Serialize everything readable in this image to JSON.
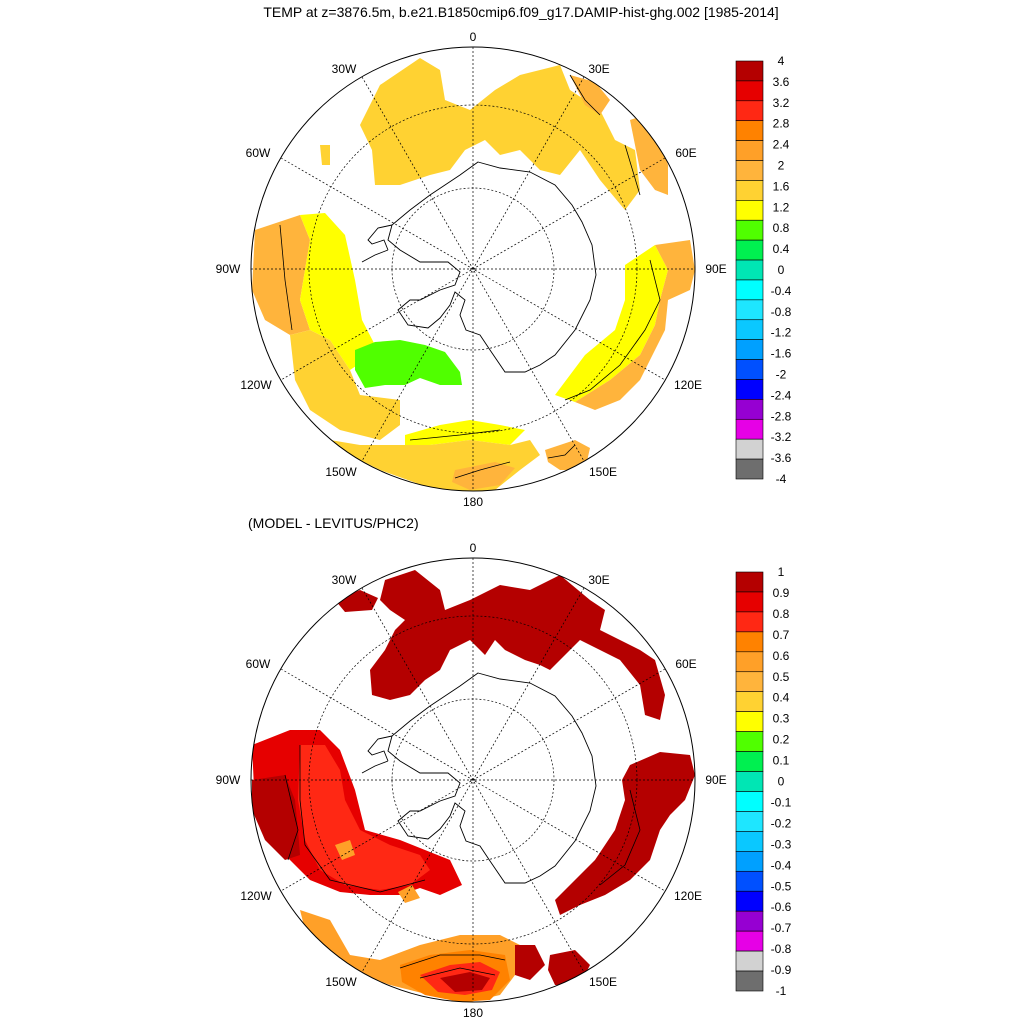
{
  "figure": {
    "title": "TEMP at z=3876.5m, b.e21.B1850cmip6.f09_g17.DAMIP-hist-ghg.002 [1985-2014]",
    "subtitle": "(MODEL - LEVITUS/PHC2)"
  },
  "maps": [
    {
      "id": "top",
      "projection": "south-polar-stereographic",
      "longitude_labels": [
        "0",
        "30E",
        "60E",
        "90E",
        "120E",
        "150E",
        "180",
        "150W",
        "120W",
        "90W",
        "60W",
        "30W"
      ],
      "colorbar": {
        "labels": [
          "4",
          "3.6",
          "3.2",
          "2.8",
          "2.4",
          "2",
          "1.6",
          "1.2",
          "0.8",
          "0.4",
          "0",
          "-0.4",
          "-0.8",
          "-1.2",
          "-1.6",
          "-2",
          "-2.4",
          "-2.8",
          "-3.2",
          "-3.6",
          "-4"
        ],
        "colors": [
          "#b40000",
          "#e60000",
          "#ff2814",
          "#ff8200",
          "#ffa028",
          "#ffb43c",
          "#ffd232",
          "#ffff00",
          "#50ff00",
          "#00f050",
          "#00e6b4",
          "#00ffff",
          "#1ee6ff",
          "#0ac8ff",
          "#00a0ff",
          "#0050ff",
          "#0000ff",
          "#9600d2",
          "#e600e6",
          "#d2d2d2",
          "#6e6e6e"
        ]
      },
      "regions": [
        {
          "name": "atlantic-sector",
          "level": "1.6",
          "color": "#ffd232"
        },
        {
          "name": "africa-30e",
          "level": "1.6",
          "color": "#ffb43c"
        },
        {
          "name": "southwest-pacific-west",
          "level": "1.6",
          "color": "#ffb43c"
        },
        {
          "name": "east-pacific-band",
          "level": "1.2",
          "color": "#ffff00"
        },
        {
          "name": "bellingshausen-patch",
          "level": "0.8",
          "color": "#50ff00"
        },
        {
          "name": "indian-ocean-east",
          "level": "1.2",
          "color": "#ffff00"
        },
        {
          "name": "tasman-south",
          "level": "1.6",
          "color": "#ffb43c"
        },
        {
          "name": "ross-sea-band",
          "level": "1.2",
          "color": "#ffff00"
        }
      ]
    },
    {
      "id": "bottom",
      "projection": "south-polar-stereographic",
      "longitude_labels": [
        "0",
        "30E",
        "60E",
        "90E",
        "120E",
        "150E",
        "180",
        "150W",
        "120W",
        "90W",
        "60W",
        "30W"
      ],
      "colorbar": {
        "labels": [
          "1",
          "0.9",
          "0.8",
          "0.7",
          "0.6",
          "0.5",
          "0.4",
          "0.3",
          "0.2",
          "0.1",
          "0",
          "-0.1",
          "-0.2",
          "-0.3",
          "-0.4",
          "-0.5",
          "-0.6",
          "-0.7",
          "-0.8",
          "-0.9",
          "-1"
        ],
        "colors": [
          "#b40000",
          "#e60000",
          "#ff2814",
          "#ff8200",
          "#ffa028",
          "#ffb43c",
          "#ffd232",
          "#ffff00",
          "#50ff00",
          "#00f050",
          "#00e6b4",
          "#00ffff",
          "#1ee6ff",
          "#0ac8ff",
          "#00a0ff",
          "#0050ff",
          "#0000ff",
          "#9600d2",
          "#e600e6",
          "#d2d2d2",
          "#6e6e6e"
        ]
      },
      "regions": [
        {
          "name": "atlantic-indian-sector",
          "level": "1",
          "color": "#b40000"
        },
        {
          "name": "indian-ocean-east",
          "level": "1",
          "color": "#b40000"
        },
        {
          "name": "southeast-pacific",
          "level": "0.8",
          "color": "#ff2814"
        },
        {
          "name": "southeast-pacific-core",
          "level": "1",
          "color": "#b40000"
        },
        {
          "name": "ross-sea-band",
          "level": "0.4",
          "color": "#ffa028"
        },
        {
          "name": "ross-sea-core",
          "level": "0.8",
          "color": "#ff2814"
        },
        {
          "name": "tasman-south",
          "level": "1",
          "color": "#b40000"
        }
      ]
    }
  ]
}
